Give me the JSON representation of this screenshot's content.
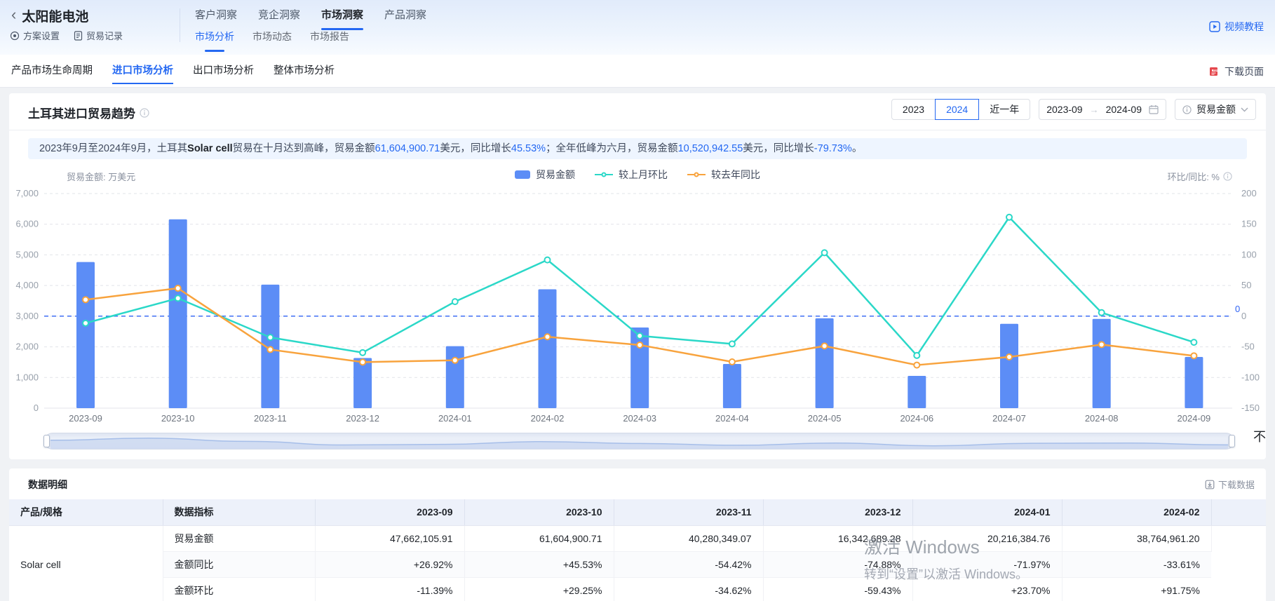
{
  "header": {
    "back": "‹",
    "title": "太阳能电池",
    "quick_links": [
      {
        "label": "方案设置"
      },
      {
        "label": "贸易记录"
      }
    ],
    "top_tabs": [
      {
        "label": "客户洞察",
        "active": false
      },
      {
        "label": "竞企洞察",
        "active": false
      },
      {
        "label": "市场洞察",
        "active": true
      },
      {
        "label": "产品洞察",
        "active": false
      }
    ],
    "sub_tabs": [
      {
        "label": "市场分析",
        "active": true
      },
      {
        "label": "市场动态",
        "active": false
      },
      {
        "label": "市场报告",
        "active": false
      }
    ],
    "video_label": "视频教程"
  },
  "nav": {
    "tabs": [
      {
        "label": "产品市场生命周期",
        "active": false
      },
      {
        "label": "进口市场分析",
        "active": true
      },
      {
        "label": "出口市场分析",
        "active": false
      },
      {
        "label": "整体市场分析",
        "active": false
      }
    ],
    "download_page_label": "下载页面"
  },
  "chart_section": {
    "title": "土耳其进口贸易趋势",
    "range_buttons": [
      {
        "label": "2023",
        "active": false
      },
      {
        "label": "2024",
        "active": true
      },
      {
        "label": "近一年",
        "active": false
      }
    ],
    "date_range": {
      "start": "2023-09",
      "end": "2024-09"
    },
    "metric_label": "贸易金额",
    "summary_segments": [
      {
        "text": "2023年9月至2024年9月，土耳其",
        "style": "normal"
      },
      {
        "text": "Solar cell",
        "style": "bold"
      },
      {
        "text": "贸易在十月达到高峰，贸易金额",
        "style": "normal"
      },
      {
        "text": "61,604,900.71",
        "style": "blue"
      },
      {
        "text": "美元，同比增长",
        "style": "normal"
      },
      {
        "text": "45.53%",
        "style": "blue"
      },
      {
        "text": "；全年低峰为六月，贸易金额",
        "style": "normal"
      },
      {
        "text": "10,520,942.55",
        "style": "blue"
      },
      {
        "text": "美元，同比增长",
        "style": "normal"
      },
      {
        "text": "-79.73%",
        "style": "blue"
      },
      {
        "text": "。",
        "style": "normal"
      }
    ],
    "left_unit": "贸易金额: 万美元",
    "right_unit": "环比/同比: %",
    "clipped_text": "不"
  },
  "chart_data": {
    "type": "bar",
    "categories": [
      "2023-09",
      "2023-10",
      "2023-11",
      "2023-12",
      "2024-01",
      "2024-02",
      "2024-03",
      "2024-04",
      "2024-05",
      "2024-06",
      "2024-07",
      "2024-08",
      "2024-09"
    ],
    "series": [
      {
        "name": "贸易金额",
        "kind": "bar",
        "axis": "left",
        "unit": "万美元",
        "color": "#5C8DF6",
        "values": [
          4766.2,
          6160.5,
          4028.0,
          1634.3,
          2021.6,
          3876.5,
          2630,
          1440,
          2930,
          1052.1,
          2750,
          2910,
          1670
        ]
      },
      {
        "name": "较上月环比",
        "kind": "line",
        "axis": "right",
        "unit": "%",
        "color": "#2BD8C8",
        "values": [
          -11.39,
          29.25,
          -34.62,
          -59.43,
          23.7,
          91.75,
          -32.1,
          -45.2,
          103.5,
          -64.1,
          161.4,
          5.8,
          -42.6
        ]
      },
      {
        "name": "较去年同比",
        "kind": "line",
        "axis": "right",
        "unit": "%",
        "color": "#F8A33D",
        "values": [
          26.92,
          45.53,
          -54.42,
          -74.88,
          -71.97,
          -33.61,
          -47.0,
          -74.5,
          -48.6,
          -79.73,
          -66.5,
          -46.3,
          -64.6
        ]
      }
    ],
    "left_axis": {
      "label": "贸易金额: 万美元",
      "min": 0,
      "max": 7000,
      "step": 1000
    },
    "right_axis": {
      "label": "环比/同比: %",
      "min": -150,
      "max": 200,
      "step": 50
    },
    "zero_line": {
      "axis": "right",
      "value": 0,
      "label": "0",
      "color": "#2E62F4"
    },
    "grid": true,
    "legend_position": "top-center"
  },
  "table": {
    "section_title": "数据明细",
    "download_label": "下载数据",
    "columns": [
      "产品/规格",
      "数据指标",
      "2023-09",
      "2023-10",
      "2023-11",
      "2023-12",
      "2024-01",
      "2024-02"
    ],
    "product": "Solar cell",
    "rows": [
      {
        "indicator": "贸易金额",
        "values": [
          {
            "v": "47,662,105.91",
            "c": "dark"
          },
          {
            "v": "61,604,900.71",
            "c": "dark"
          },
          {
            "v": "40,280,349.07",
            "c": "dark"
          },
          {
            "v": "16,342,689.28",
            "c": "dark"
          },
          {
            "v": "20,216,384.76",
            "c": "dark"
          },
          {
            "v": "38,764,961.20",
            "c": "dark"
          }
        ]
      },
      {
        "indicator": "金额同比",
        "values": [
          {
            "v": "+26.92%",
            "c": "red"
          },
          {
            "v": "+45.53%",
            "c": "red"
          },
          {
            "v": "-54.42%",
            "c": "green"
          },
          {
            "v": "-74.88%",
            "c": "green"
          },
          {
            "v": "-71.97%",
            "c": "green"
          },
          {
            "v": "-33.61%",
            "c": "green"
          }
        ]
      },
      {
        "indicator": "金额环比",
        "values": [
          {
            "v": "-11.39%",
            "c": "green"
          },
          {
            "v": "+29.25%",
            "c": "red"
          },
          {
            "v": "-34.62%",
            "c": "green"
          },
          {
            "v": "-59.43%",
            "c": "green"
          },
          {
            "v": "+23.70%",
            "c": "red"
          },
          {
            "v": "+91.75%",
            "c": "red"
          }
        ]
      }
    ]
  },
  "watermark": {
    "line1": "激活 Windows",
    "line2": "转到“设置”以激活 Windows。"
  }
}
